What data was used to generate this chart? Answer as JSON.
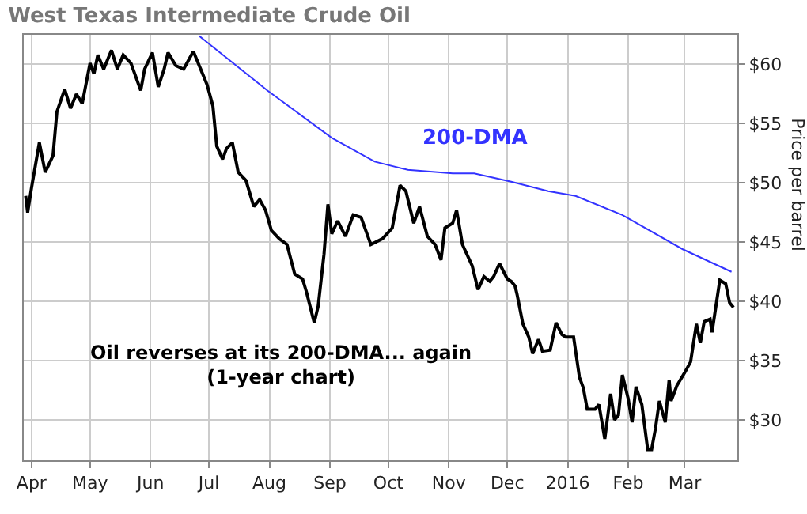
{
  "chart_data": {
    "type": "line",
    "title": "West Texas Intermediate Crude Oil",
    "ylabel": "Price per barrel",
    "annotations": [
      "Oil reverses at its 200-DMA... again\n(1-year chart)"
    ],
    "series": [
      {
        "color": "#000000",
        "x": [
          "2015-03-29",
          "2015-03-30",
          "2015-04-01",
          "2015-04-05",
          "2015-04-08",
          "2015-04-12",
          "2015-04-14",
          "2015-04-18",
          "2015-04-21",
          "2015-04-24",
          "2015-04-27",
          "2015-05-01",
          "2015-05-03",
          "2015-05-05",
          "2015-05-08",
          "2015-05-12",
          "2015-05-15",
          "2015-05-18",
          "2015-05-22",
          "2015-05-27",
          "2015-05-29",
          "2015-06-02",
          "2015-06-05",
          "2015-06-08",
          "2015-06-10",
          "2015-06-14",
          "2015-06-18",
          "2015-06-23",
          "2015-06-26",
          "2015-06-30",
          "2015-07-03",
          "2015-07-05",
          "2015-07-08",
          "2015-07-10",
          "2015-07-13",
          "2015-07-16",
          "2015-07-20",
          "2015-07-24",
          "2015-07-27",
          "2015-07-30",
          "2015-08-02",
          "2015-08-06",
          "2015-08-10",
          "2015-08-14",
          "2015-08-18",
          "2015-08-20",
          "2015-08-24",
          "2015-08-26",
          "2015-08-29",
          "2015-08-31",
          "2015-09-02",
          "2015-09-05",
          "2015-09-09",
          "2015-09-13",
          "2015-09-17",
          "2015-09-22",
          "2015-09-28",
          "2015-10-03",
          "2015-10-07",
          "2015-10-10",
          "2015-10-14",
          "2015-10-17",
          "2015-10-21",
          "2015-10-25",
          "2015-10-28",
          "2015-10-30",
          "2015-11-03",
          "2015-11-05",
          "2015-11-08",
          "2015-11-13",
          "2015-11-16",
          "2015-11-19",
          "2015-11-22",
          "2015-11-24",
          "2015-11-27",
          "2015-12-01",
          "2015-12-03",
          "2015-12-05",
          "2015-12-06",
          "2015-12-09",
          "2015-12-12",
          "2015-12-14",
          "2015-12-17",
          "2015-12-19",
          "2015-12-23",
          "2015-12-26",
          "2015-12-29",
          "2015-12-31",
          "2016-01-04",
          "2016-01-07",
          "2016-01-09",
          "2016-01-11",
          "2016-01-15",
          "2016-01-17",
          "2016-01-20",
          "2016-01-23",
          "2016-01-25",
          "2016-01-27",
          "2016-01-29",
          "2016-02-01",
          "2016-02-03",
          "2016-02-05",
          "2016-02-08",
          "2016-02-11",
          "2016-02-13",
          "2016-02-15",
          "2016-02-17",
          "2016-02-20",
          "2016-02-22",
          "2016-02-23",
          "2016-02-26",
          "2016-03-01",
          "2016-03-04",
          "2016-03-07",
          "2016-03-09",
          "2016-03-11",
          "2016-03-14",
          "2016-03-15",
          "2016-03-19",
          "2016-03-22",
          "2016-03-24",
          "2016-03-26"
        ],
        "values": [
          48.9,
          47.5,
          49.6,
          53.4,
          50.9,
          52.3,
          56.0,
          57.9,
          56.3,
          57.5,
          56.7,
          60.1,
          59.2,
          60.8,
          59.6,
          61.2,
          59.6,
          60.8,
          60.1,
          57.8,
          59.6,
          61.0,
          58.1,
          59.6,
          61.0,
          59.9,
          59.6,
          61.1,
          59.9,
          58.3,
          56.5,
          53.1,
          52.0,
          52.9,
          53.4,
          50.9,
          50.2,
          48.0,
          48.6,
          47.7,
          46.0,
          45.3,
          44.8,
          42.3,
          41.9,
          40.8,
          38.2,
          39.6,
          44.0,
          48.2,
          45.7,
          46.8,
          45.5,
          47.3,
          47.1,
          44.8,
          45.3,
          46.2,
          49.8,
          49.3,
          46.6,
          48.0,
          45.5,
          44.8,
          43.5,
          46.2,
          46.6,
          47.7,
          44.8,
          43.0,
          41.0,
          42.1,
          41.7,
          42.1,
          43.2,
          41.9,
          41.7,
          41.3,
          40.6,
          38.1,
          37.0,
          35.6,
          36.8,
          35.8,
          35.9,
          38.2,
          37.2,
          37.0,
          37.0,
          33.6,
          32.7,
          30.9,
          30.9,
          31.3,
          28.4,
          32.2,
          30.0,
          30.4,
          33.8,
          31.8,
          29.8,
          32.8,
          31.3,
          27.5,
          27.5,
          29.3,
          31.6,
          29.8,
          33.4,
          31.6,
          32.9,
          34.0,
          34.9,
          38.1,
          36.5,
          38.3,
          38.5,
          37.4,
          41.8,
          41.5,
          39.9,
          39.5
        ]
      },
      {
        "name": "200-DMA",
        "color": "#3333ff",
        "x": [
          "2015-06-26",
          "2015-07-31",
          "2015-09-02",
          "2015-09-24",
          "2015-10-11",
          "2015-11-03",
          "2015-11-14",
          "2015-12-03",
          "2015-12-22",
          "2016-01-05",
          "2016-01-29",
          "2016-02-29",
          "2016-03-25"
        ],
        "values": [
          62.4,
          57.8,
          53.8,
          51.8,
          51.1,
          50.8,
          50.8,
          50.1,
          49.3,
          48.9,
          47.3,
          44.4,
          42.5
        ]
      }
    ],
    "xlim": [
      "2015-03-28",
      "2016-03-28"
    ],
    "xticks": [
      {
        "value": "2015-04-01",
        "label": "Apr"
      },
      {
        "value": "2015-05-01",
        "label": "May"
      },
      {
        "value": "2015-06-01",
        "label": "Jun"
      },
      {
        "value": "2015-07-01",
        "label": "Jul"
      },
      {
        "value": "2015-08-01",
        "label": "Aug"
      },
      {
        "value": "2015-09-01",
        "label": "Sep"
      },
      {
        "value": "2015-10-01",
        "label": "Oct"
      },
      {
        "value": "2015-11-01",
        "label": "Nov"
      },
      {
        "value": "2015-12-01",
        "label": "Dec"
      },
      {
        "value": "2016-01-01",
        "label": "2016"
      },
      {
        "value": "2016-02-01",
        "label": "Feb"
      },
      {
        "value": "2016-03-01",
        "label": "Mar"
      }
    ],
    "ylim": [
      26.6,
      62.5
    ],
    "yticks": [
      {
        "value": 30,
        "label": "$30"
      },
      {
        "value": 35,
        "label": "$35"
      },
      {
        "value": 40,
        "label": "$40"
      },
      {
        "value": 45,
        "label": "$45"
      },
      {
        "value": 50,
        "label": "$50"
      },
      {
        "value": 55,
        "label": "$55"
      },
      {
        "value": 60,
        "label": "$60"
      }
    ],
    "grid": true,
    "legend": false,
    "marker": "none",
    "line_style": "solid"
  }
}
